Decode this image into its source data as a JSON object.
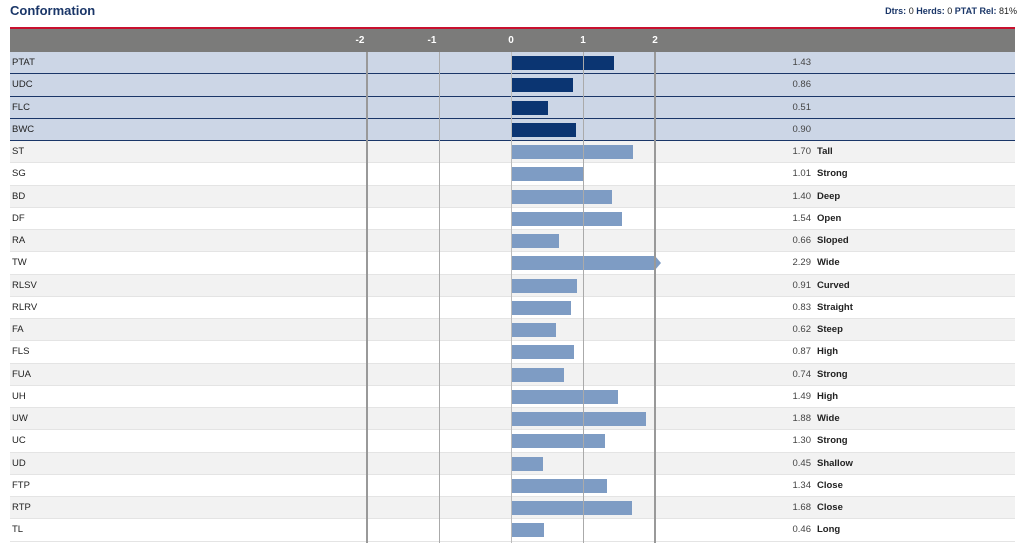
{
  "header": {
    "title": "Conformation",
    "dtrs_label": "Dtrs:",
    "dtrs": "0",
    "herds_label": "Herds:",
    "herds": "0",
    "rel_label": "PTAT Rel:",
    "rel": "81%"
  },
  "colors": {
    "accent": "#c8102e",
    "composite_bar": "#0b3572",
    "trait_bar": "#7e9cc4",
    "header_bg": "#7b7b7a"
  },
  "chart_data": {
    "type": "bar",
    "orientation": "horizontal",
    "xlim": [
      -2,
      2
    ],
    "tick_labels": [
      "-2",
      "-1",
      "0",
      "1",
      "2"
    ],
    "categories": [
      "PTAT",
      "UDC",
      "FLC",
      "BWC",
      "ST",
      "SG",
      "BD",
      "DF",
      "RA",
      "TW",
      "RLSV",
      "RLRV",
      "FA",
      "FLS",
      "FUA",
      "UH",
      "UW",
      "UC",
      "UD",
      "FTP",
      "RTP",
      "TL"
    ],
    "values": [
      1.43,
      0.86,
      0.51,
      0.9,
      1.7,
      1.01,
      1.4,
      1.54,
      0.66,
      2.29,
      0.91,
      0.83,
      0.62,
      0.87,
      0.74,
      1.49,
      1.88,
      1.3,
      0.45,
      1.34,
      1.68,
      0.46
    ],
    "value_labels": [
      "1.43",
      "0.86",
      "0.51",
      "0.90",
      "1.70",
      "1.01",
      "1.40",
      "1.54",
      "0.66",
      "2.29",
      "0.91",
      "0.83",
      "0.62",
      "0.87",
      "0.74",
      "1.49",
      "1.88",
      "1.30",
      "0.45",
      "1.34",
      "1.68",
      "0.46"
    ],
    "descriptors": [
      "",
      "",
      "",
      "",
      "Tall",
      "Strong",
      "Deep",
      "Open",
      "Sloped",
      "Wide",
      "Curved",
      "Straight",
      "Steep",
      "High",
      "Strong",
      "High",
      "Wide",
      "Strong",
      "Shallow",
      "Close",
      "Close",
      "Long"
    ],
    "composite_count": 4
  }
}
